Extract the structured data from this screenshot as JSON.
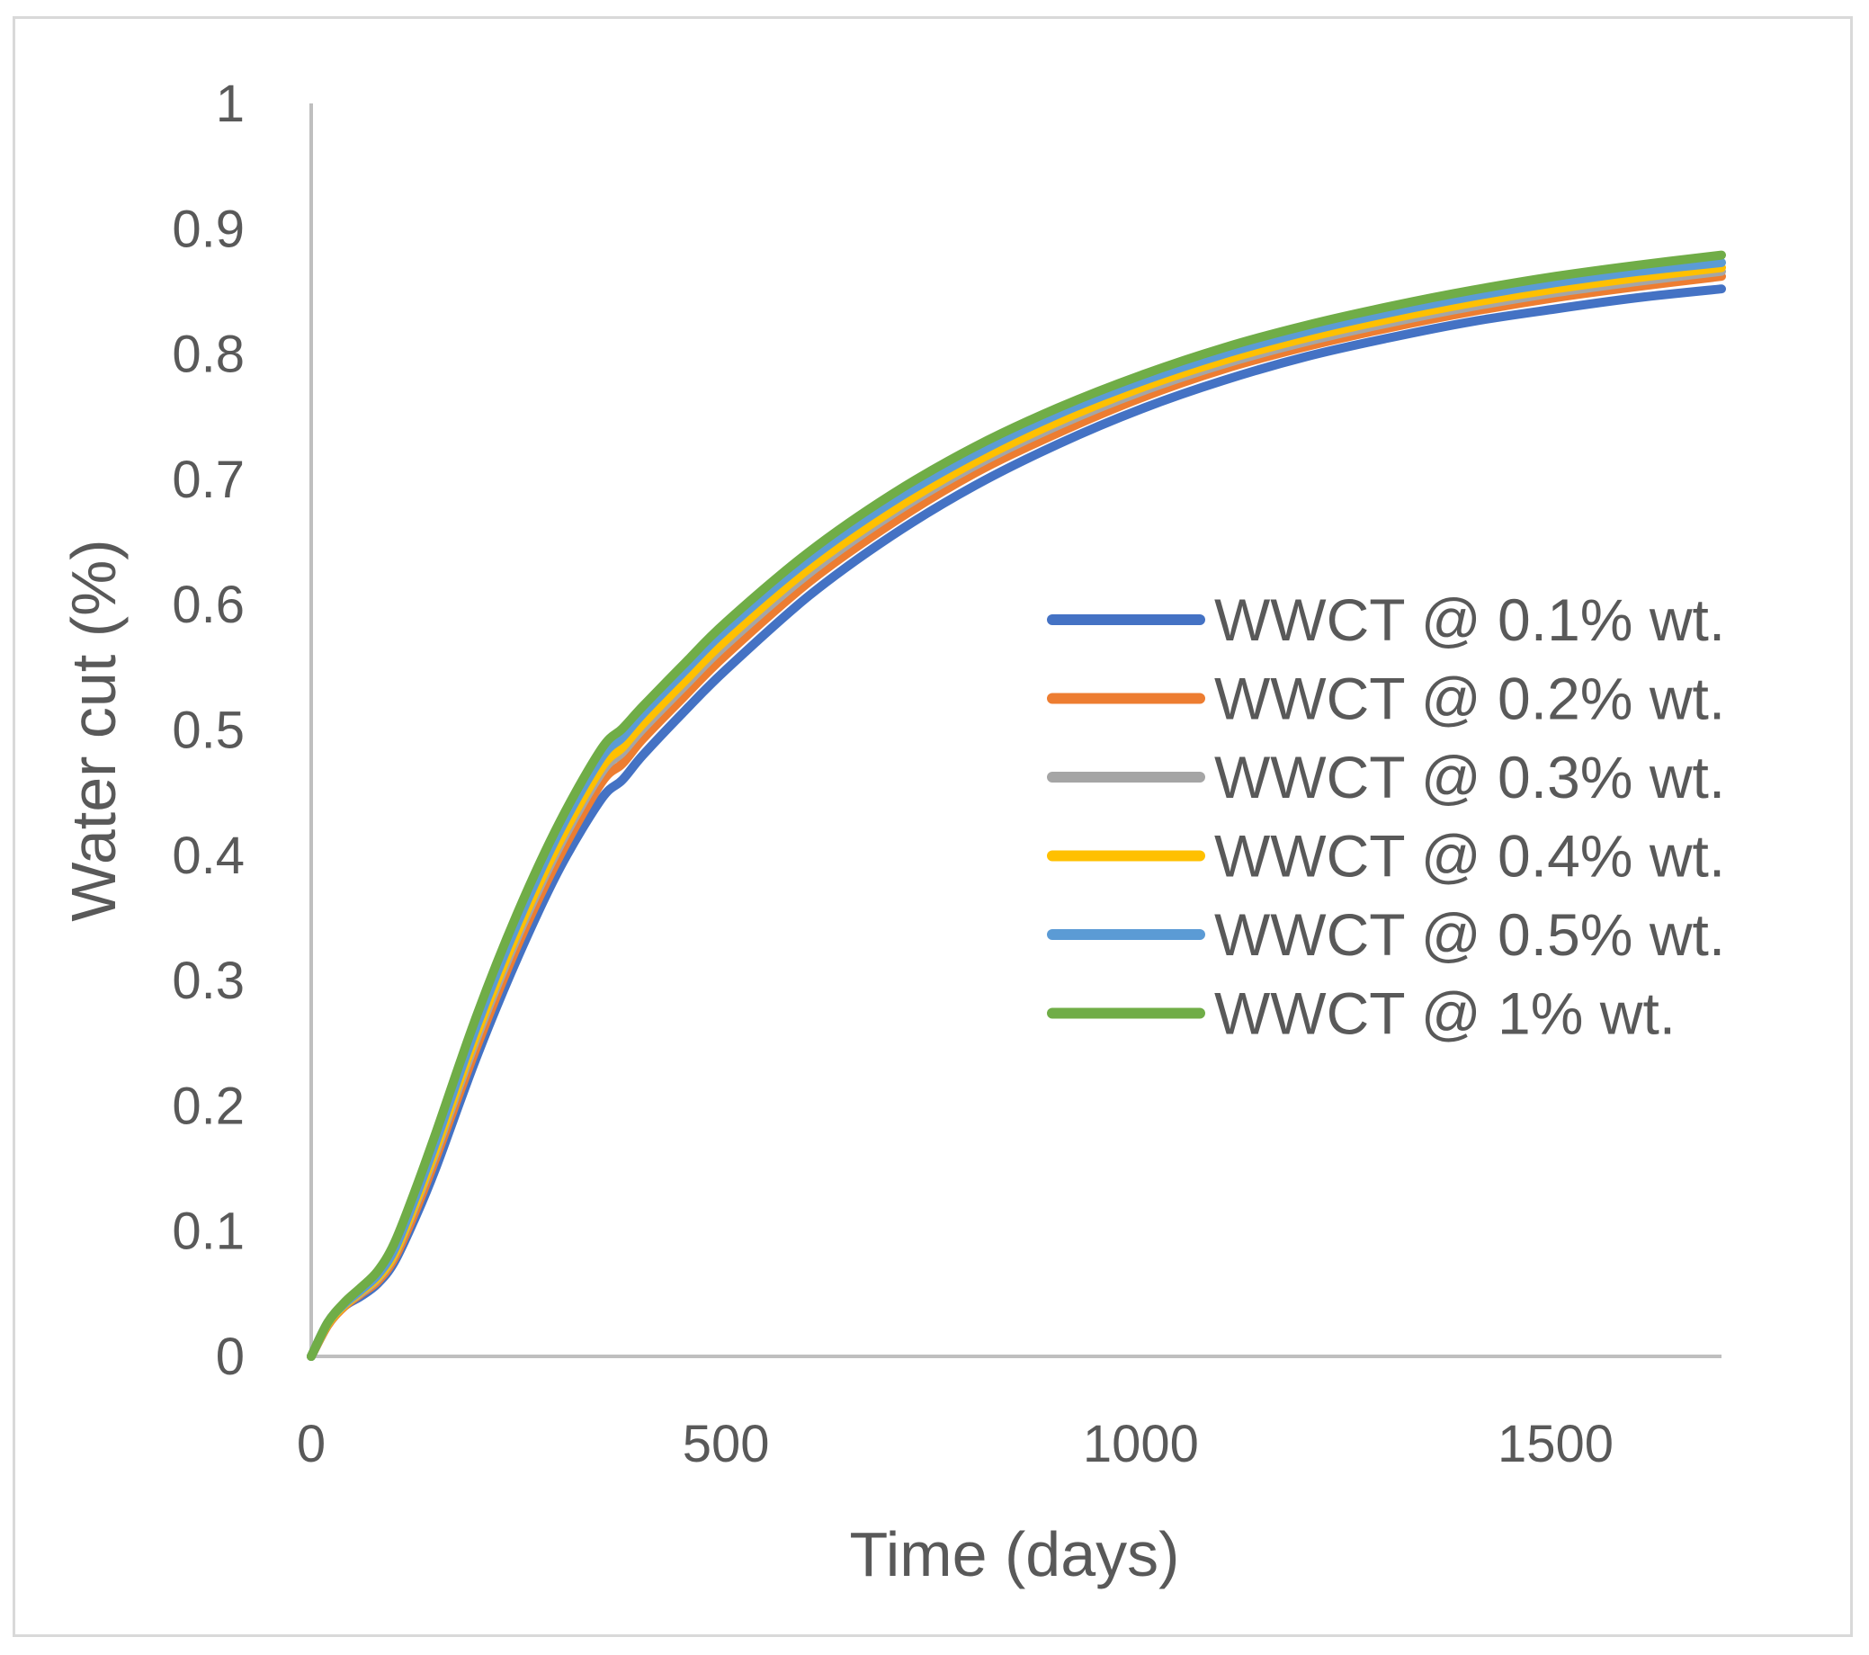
{
  "chart_data": {
    "type": "line",
    "title": "",
    "xlabel": "Time (days)",
    "ylabel": "Water cut (%)",
    "xlim": [
      0,
      1700
    ],
    "ylim": [
      0,
      1
    ],
    "xticks": [
      0,
      500,
      1000,
      1500
    ],
    "yticks": [
      0,
      0.1,
      0.2,
      0.3,
      0.4,
      0.5,
      0.6,
      0.7,
      0.8,
      0.9,
      1
    ],
    "ytick_labels": [
      "0",
      "0.1",
      "0.2",
      "0.3",
      "0.4",
      "0.5",
      "0.6",
      "0.7",
      "0.8",
      "0.9",
      "1"
    ],
    "xtick_labels": [
      "0",
      "500",
      "1000",
      "1500"
    ],
    "legend_position": "right",
    "x": [
      0,
      20,
      40,
      60,
      80,
      100,
      125,
      150,
      200,
      250,
      300,
      350,
      375,
      400,
      450,
      500,
      600,
      700,
      800,
      900,
      1000,
      1100,
      1200,
      1300,
      1400,
      1500,
      1600,
      1700
    ],
    "series": [
      {
        "name": "WWCT @ 0.1% wt.",
        "color": "#4472c4",
        "values": [
          0,
          0.025,
          0.04,
          0.048,
          0.058,
          0.075,
          0.11,
          0.15,
          0.24,
          0.32,
          0.39,
          0.445,
          0.46,
          0.48,
          0.515,
          0.548,
          0.607,
          0.655,
          0.695,
          0.728,
          0.756,
          0.779,
          0.798,
          0.813,
          0.826,
          0.836,
          0.845,
          0.852
        ]
      },
      {
        "name": "WWCT @ 0.2% wt.",
        "color": "#ed7d31",
        "values": [
          0,
          0.025,
          0.04,
          0.05,
          0.06,
          0.078,
          0.115,
          0.158,
          0.248,
          0.33,
          0.4,
          0.458,
          0.473,
          0.493,
          0.527,
          0.56,
          0.618,
          0.665,
          0.705,
          0.737,
          0.765,
          0.788,
          0.806,
          0.821,
          0.834,
          0.845,
          0.854,
          0.862
        ]
      },
      {
        "name": "WWCT @ 0.3% wt.",
        "color": "#a5a5a5",
        "values": [
          0,
          0.026,
          0.041,
          0.051,
          0.062,
          0.081,
          0.12,
          0.163,
          0.255,
          0.337,
          0.408,
          0.466,
          0.482,
          0.501,
          0.535,
          0.568,
          0.625,
          0.672,
          0.711,
          0.743,
          0.77,
          0.792,
          0.81,
          0.825,
          0.838,
          0.849,
          0.858,
          0.866
        ]
      },
      {
        "name": "WWCT @ 0.4% wt.",
        "color": "#ffc000",
        "values": [
          0,
          0.026,
          0.041,
          0.052,
          0.063,
          0.082,
          0.122,
          0.166,
          0.259,
          0.341,
          0.412,
          0.47,
          0.486,
          0.505,
          0.539,
          0.572,
          0.629,
          0.675,
          0.714,
          0.746,
          0.773,
          0.795,
          0.813,
          0.828,
          0.841,
          0.852,
          0.861,
          0.869
        ]
      },
      {
        "name": "WWCT @ 0.5% wt.",
        "color": "#5b9bd5",
        "values": [
          0,
          0.027,
          0.042,
          0.053,
          0.065,
          0.085,
          0.126,
          0.171,
          0.265,
          0.348,
          0.42,
          0.478,
          0.494,
          0.513,
          0.547,
          0.58,
          0.636,
          0.682,
          0.72,
          0.752,
          0.778,
          0.8,
          0.818,
          0.833,
          0.846,
          0.857,
          0.866,
          0.873
        ]
      },
      {
        "name": "WWCT @ 1% wt.",
        "color": "#70ad47",
        "values": [
          0,
          0.027,
          0.043,
          0.055,
          0.068,
          0.09,
          0.132,
          0.178,
          0.273,
          0.356,
          0.427,
          0.485,
          0.501,
          0.519,
          0.553,
          0.586,
          0.642,
          0.688,
          0.726,
          0.757,
          0.783,
          0.805,
          0.823,
          0.838,
          0.851,
          0.862,
          0.871,
          0.879
        ]
      }
    ]
  }
}
